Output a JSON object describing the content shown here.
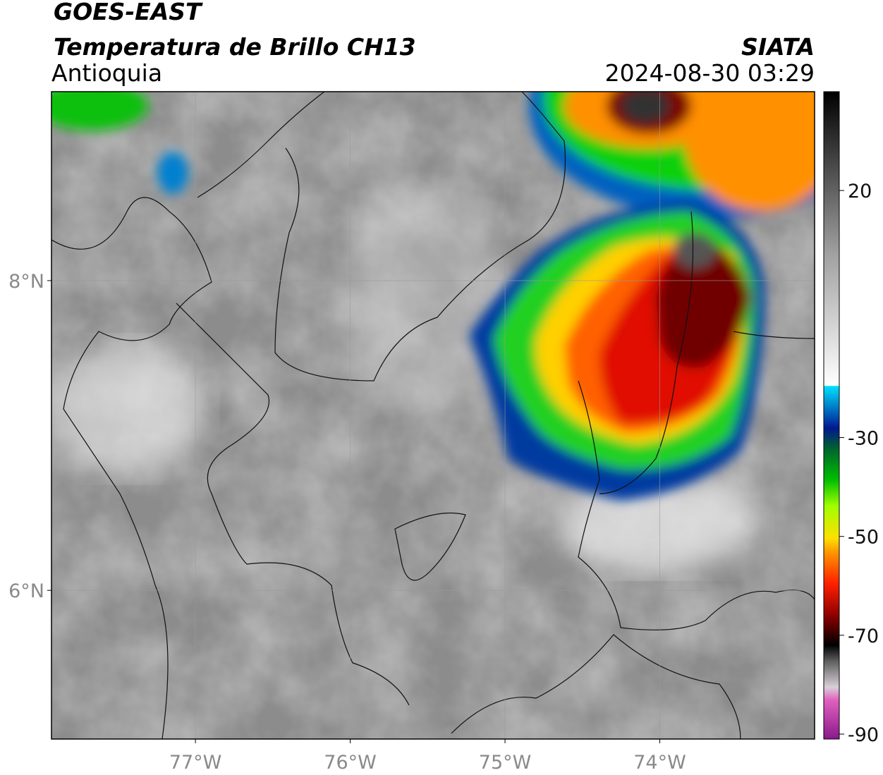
{
  "header": {
    "satellite": "GOES-EAST",
    "product": "Temperatura de Brillo CH13",
    "region": "Antioquia",
    "agency": "SIATA",
    "datetime": "2024-08-30 03:29"
  },
  "map": {
    "xlim": [
      -77.93,
      -73.0
    ],
    "ylim": [
      5.04,
      9.22
    ],
    "xticks": [
      {
        "value": -77,
        "label": "77°W"
      },
      {
        "value": -76,
        "label": "76°W"
      },
      {
        "value": -75,
        "label": "75°W"
      },
      {
        "value": -74,
        "label": "74°W"
      }
    ],
    "yticks": [
      {
        "value": 8,
        "label": "8°N"
      },
      {
        "value": 6,
        "label": "6°N"
      }
    ],
    "grid": true
  },
  "colorbar": {
    "lim": [
      -91,
      40
    ],
    "ticks": [
      20,
      -30,
      -50,
      -70,
      -90
    ]
  }
}
